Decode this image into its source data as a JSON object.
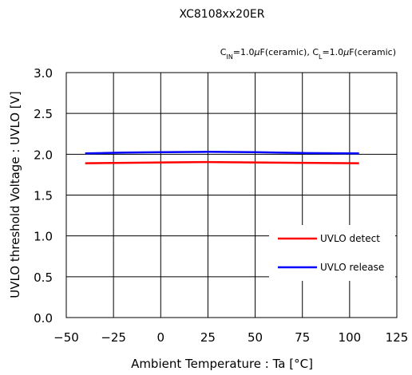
{
  "chart_data": {
    "type": "line",
    "title": "XC8108xx20ER",
    "subtitle": {
      "parts": [
        {
          "t": "C",
          "sub": false
        },
        {
          "t": "IN",
          "sub": true
        },
        {
          "t": "=1.0",
          "sub": false
        },
        {
          "t": "μ",
          "sub": false,
          "italic": true
        },
        {
          "t": "F(ceramic), C",
          "sub": false
        },
        {
          "t": "L",
          "sub": true
        },
        {
          "t": "=1.0",
          "sub": false
        },
        {
          "t": "μ",
          "sub": false,
          "italic": true
        },
        {
          "t": "F(ceramic)",
          "sub": false
        }
      ]
    },
    "xlabel": "Ambient Temperature : Ta [°C]",
    "ylabel": "UVLO threshold Voltage : UVLO [V]",
    "xlim": [
      -50,
      125
    ],
    "ylim": [
      0,
      3
    ],
    "xticks": [
      -50,
      -25,
      0,
      25,
      50,
      75,
      100,
      125
    ],
    "xtick_labels": [
      "−50",
      "−25",
      "0",
      "25",
      "50",
      "75",
      "100",
      "125"
    ],
    "yticks": [
      0,
      0.5,
      1,
      1.5,
      2,
      2.5,
      3
    ],
    "ytick_labels": [
      "0.0",
      "0.5",
      "1.0",
      "1.5",
      "2.0",
      "2.5",
      "3.0"
    ],
    "grid": true,
    "legend_position": "lower-right",
    "series": [
      {
        "name": "UVLO detect",
        "color": "#ff0000",
        "x": [
          -40,
          -20,
          0,
          25,
          50,
          75,
          105
        ],
        "y": [
          1.89,
          1.895,
          1.9,
          1.905,
          1.9,
          1.895,
          1.89
        ]
      },
      {
        "name": "UVLO release",
        "color": "#0000ff",
        "x": [
          -40,
          -20,
          0,
          25,
          50,
          75,
          105
        ],
        "y": [
          2.01,
          2.02,
          2.025,
          2.03,
          2.025,
          2.015,
          2.01
        ]
      }
    ]
  }
}
